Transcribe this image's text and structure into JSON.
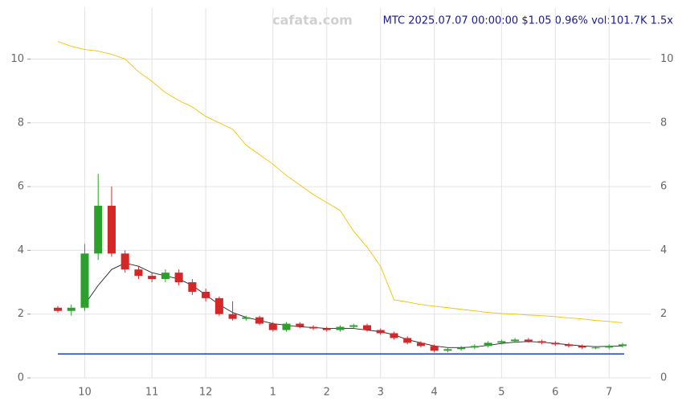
{
  "chart_data": {
    "type": "candlestick",
    "title": "MTC 2025.07.07 00:00:00 $1.05 0.96% vol:101.7K 1.5x",
    "watermark": "cafata.com",
    "categories": [
      null,
      null,
      "10",
      null,
      null,
      null,
      null,
      "11",
      null,
      null,
      null,
      "12",
      null,
      null,
      null,
      null,
      "1",
      null,
      null,
      null,
      "2",
      null,
      null,
      null,
      "3",
      null,
      null,
      null,
      "4",
      null,
      null,
      null,
      null,
      "5",
      null,
      null,
      null,
      "6",
      null,
      null,
      null,
      "7",
      null
    ],
    "open": [
      2.2,
      2.1,
      2.2,
      3.9,
      5.4,
      3.9,
      3.4,
      3.2,
      3.1,
      3.3,
      3.0,
      2.7,
      2.5,
      2.0,
      1.85,
      1.9,
      1.7,
      1.5,
      1.7,
      1.6,
      1.55,
      1.5,
      1.6,
      1.65,
      1.5,
      1.4,
      1.25,
      1.1,
      1.0,
      0.85,
      0.9,
      0.95,
      1.0,
      1.1,
      1.15,
      1.2,
      1.15,
      1.1,
      1.05,
      1.0,
      0.95,
      0.95,
      1.0
    ],
    "high": [
      2.25,
      2.3,
      4.2,
      6.4,
      6.0,
      4.0,
      3.5,
      3.3,
      3.4,
      3.4,
      3.1,
      2.8,
      2.55,
      2.4,
      1.95,
      1.95,
      1.75,
      1.75,
      1.75,
      1.65,
      1.6,
      1.65,
      1.7,
      1.7,
      1.55,
      1.45,
      1.3,
      1.15,
      1.05,
      0.95,
      1.0,
      1.05,
      1.15,
      1.2,
      1.25,
      1.25,
      1.2,
      1.15,
      1.1,
      1.05,
      1.0,
      1.05,
      1.1
    ],
    "low": [
      2.05,
      1.95,
      2.1,
      3.7,
      3.8,
      3.3,
      3.1,
      3.0,
      3.0,
      2.9,
      2.6,
      2.4,
      1.95,
      1.8,
      1.8,
      1.65,
      1.45,
      1.45,
      1.55,
      1.5,
      1.45,
      1.45,
      1.55,
      1.45,
      1.35,
      1.2,
      1.05,
      0.95,
      0.8,
      0.8,
      0.85,
      0.9,
      0.95,
      1.05,
      1.1,
      1.1,
      1.05,
      1.0,
      0.95,
      0.9,
      0.9,
      0.9,
      0.95
    ],
    "close": [
      2.1,
      2.2,
      3.9,
      5.4,
      3.9,
      3.4,
      3.2,
      3.1,
      3.3,
      3.0,
      2.7,
      2.5,
      2.0,
      1.85,
      1.9,
      1.7,
      1.5,
      1.7,
      1.6,
      1.55,
      1.5,
      1.6,
      1.65,
      1.5,
      1.4,
      1.25,
      1.1,
      1.0,
      0.85,
      0.9,
      0.95,
      1.0,
      1.1,
      1.15,
      1.2,
      1.15,
      1.1,
      1.05,
      1.0,
      0.95,
      0.95,
      1.0,
      1.05
    ],
    "up_color": "#2ca02c",
    "down_color": "#d62728",
    "lines": [
      {
        "color": "#f2c200",
        "values": [
          10.55,
          10.4,
          10.3,
          10.25,
          10.15,
          10.0,
          9.6,
          9.3,
          8.95,
          8.7,
          8.5,
          8.2,
          8.0,
          7.8,
          7.3,
          7.0,
          6.7,
          6.35,
          6.05,
          5.75,
          5.5,
          5.25,
          4.6,
          4.1,
          3.5,
          2.45,
          2.38,
          2.3,
          2.25,
          2.2,
          2.15,
          2.1,
          2.05,
          2.02,
          2.0,
          1.97,
          1.95,
          1.92,
          1.88,
          1.85,
          1.8,
          1.77,
          1.73
        ]
      },
      {
        "color": "#222222",
        "values": [
          null,
          null,
          2.3,
          2.9,
          3.4,
          3.6,
          3.5,
          3.3,
          3.2,
          3.1,
          2.9,
          2.6,
          2.3,
          2.05,
          1.9,
          1.8,
          1.7,
          1.65,
          1.6,
          1.58,
          1.55,
          1.55,
          1.55,
          1.5,
          1.45,
          1.35,
          1.2,
          1.1,
          1.0,
          0.95,
          0.95,
          0.97,
          1.02,
          1.08,
          1.12,
          1.14,
          1.12,
          1.08,
          1.04,
          1.0,
          0.98,
          0.99,
          1.0
        ]
      }
    ],
    "baseline": 0.75,
    "baseline_color": "#1f3fbf",
    "ylim": [
      0,
      11.6
    ],
    "yticks": [
      0,
      2,
      4,
      6,
      8,
      10
    ],
    "grid": true
  }
}
